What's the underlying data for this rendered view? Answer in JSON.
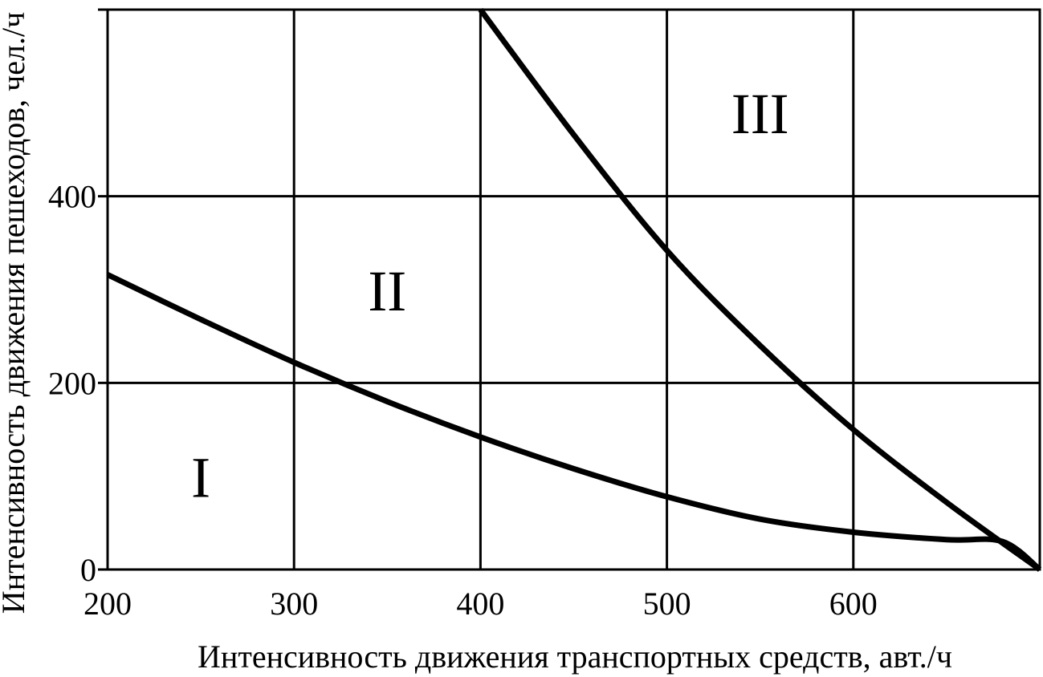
{
  "chart_data": {
    "type": "line",
    "title": "",
    "xlabel": "Интенсивность движения транспортных средств, авт./ч",
    "ylabel": "Интенсивность движения пешеходов, чел./ч",
    "xlim": [
      200,
      700
    ],
    "ylim": [
      0,
      600
    ],
    "grid": true,
    "x_ticks": [
      200,
      300,
      400,
      500,
      600
    ],
    "y_ticks": [
      0,
      200,
      400
    ],
    "series": [
      {
        "x": [
          200,
          250,
          300,
          350,
          400,
          450,
          500,
          550,
          600,
          650,
          680,
          700
        ],
        "values": [
          316,
          268,
          222,
          180,
          142,
          108,
          78,
          54,
          40,
          32,
          30,
          0
        ]
      },
      {
        "x": [
          400,
          450,
          500,
          550,
          600,
          650,
          700
        ],
        "values": [
          600,
          466,
          342,
          240,
          150,
          72,
          0
        ]
      }
    ],
    "regions": [
      {
        "label": "I",
        "x": 250,
        "y": 100
      },
      {
        "label": "II",
        "x": 350,
        "y": 300
      },
      {
        "label": "III",
        "x": 550,
        "y": 490
      }
    ]
  }
}
